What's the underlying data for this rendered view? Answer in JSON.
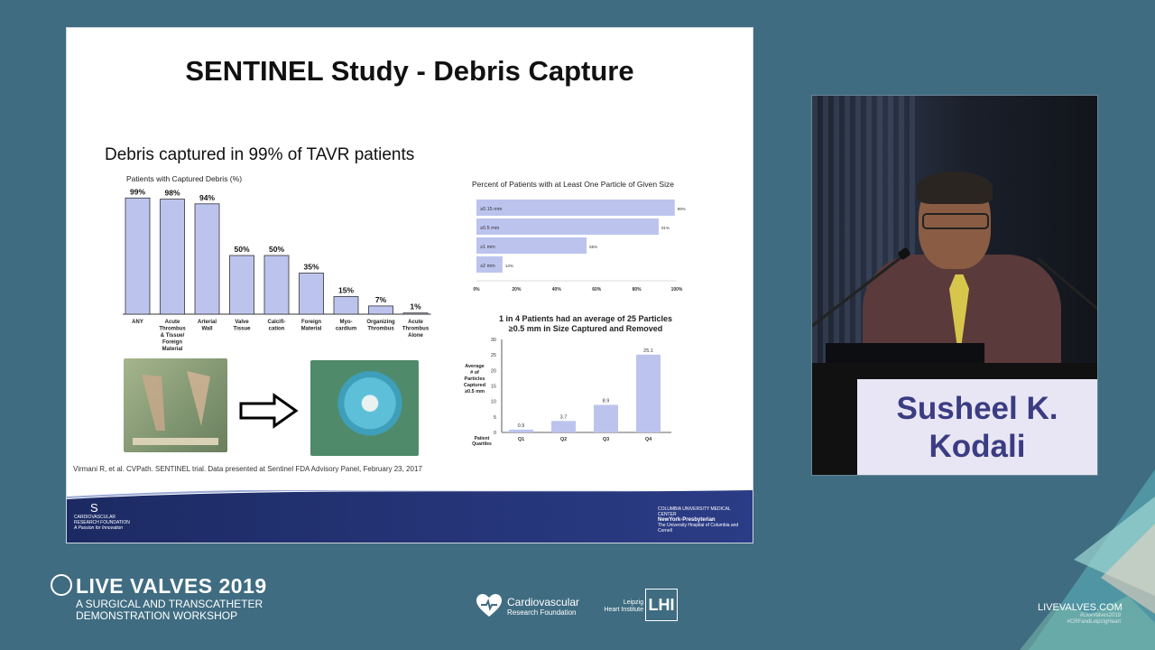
{
  "slide": {
    "title": "SENTINEL Study - Debris Capture",
    "subtitle": "Debris captured in 99% of TAVR patients",
    "citation": "Virmani R, et al. CVPath. SENTINEL trial. Data presented at Sentinel FDA Advisory Panel, February 23, 2017",
    "footer_left_logo": "CARDIOVASCULAR RESEARCH FOUNDATION",
    "footer_left_tagline": "A Passion for Innovation",
    "footer_right_logo_1": "COLUMBIA UNIVERSITY MEDICAL CENTER",
    "footer_right_logo_2": "NewYork-Presbyterian",
    "footer_right_logo_3": "The University Hospital of Columbia and Cornell"
  },
  "chart_data": [
    {
      "type": "bar",
      "title": "Patients with Captured Debris (%)",
      "categories": [
        "ANY",
        "Acute Thrombus & Tissue/ Foreign Material",
        "Arterial Wall",
        "Valve Tissue",
        "Calcifi- cation",
        "Foreign Material",
        "Myo- cardium",
        "Organizing Thrombus",
        "Acute Thrombus Alone"
      ],
      "values": [
        99,
        98,
        94,
        50,
        50,
        35,
        15,
        7,
        1
      ],
      "labels": [
        "99%",
        "98%",
        "94%",
        "50%",
        "50%",
        "35%",
        "15%",
        "7%",
        "1%"
      ],
      "ylim": [
        0,
        100
      ],
      "color": "#bcc4ee"
    },
    {
      "type": "bar",
      "orientation": "horizontal",
      "title": "Percent of Patients with at Least One Particle of Given Size",
      "categories": [
        "≥0.15 mm",
        "≥0.5 mm",
        "≥1 mm",
        "≥2 mm"
      ],
      "values": [
        99,
        91,
        55,
        13
      ],
      "labels": [
        "99%",
        "91%",
        "55%",
        "13%"
      ],
      "xticks": [
        "0%",
        "20%",
        "40%",
        "60%",
        "80%",
        "100%"
      ],
      "xlim": [
        0,
        100
      ],
      "color": "#bcc4ee"
    },
    {
      "type": "bar",
      "title": "1 in 4 Patients had an average of 25 Particles ≥0.5 mm in Size Captured and Removed",
      "ylabel": "Average # of Particles Captured ≥0.5 mm",
      "xlabel": "Patient Quartiles",
      "categories": [
        "Q1",
        "Q2",
        "Q3",
        "Q4"
      ],
      "values": [
        0.9,
        3.7,
        8.9,
        25.1
      ],
      "labels": [
        "0.9",
        "3.7",
        "8.9",
        "25.1"
      ],
      "yticks": [
        0,
        5,
        10,
        15,
        20,
        25,
        30
      ],
      "ylim": [
        0,
        30
      ],
      "color": "#bcc4ee"
    }
  ],
  "speaker": {
    "name_line1": "Susheel K.",
    "name_line2": "Kodali"
  },
  "branding": {
    "event_title": "LIVE VALVES 2019",
    "event_sub1": "A SURGICAL AND TRANSCATHETER",
    "event_sub2": "DEMONSTRATION WORKSHOP",
    "crf_line1": "Cardiovascular",
    "crf_line2": "Research Foundation",
    "lhi_line1": "Leipzig",
    "lhi_line2": "Heart Institute",
    "lhi_mark": "LHI",
    "site": "LIVEVALVES.COM",
    "hashtag1": "#LiveValves2019",
    "hashtag2": "#CRFandLeipzigHeart"
  }
}
